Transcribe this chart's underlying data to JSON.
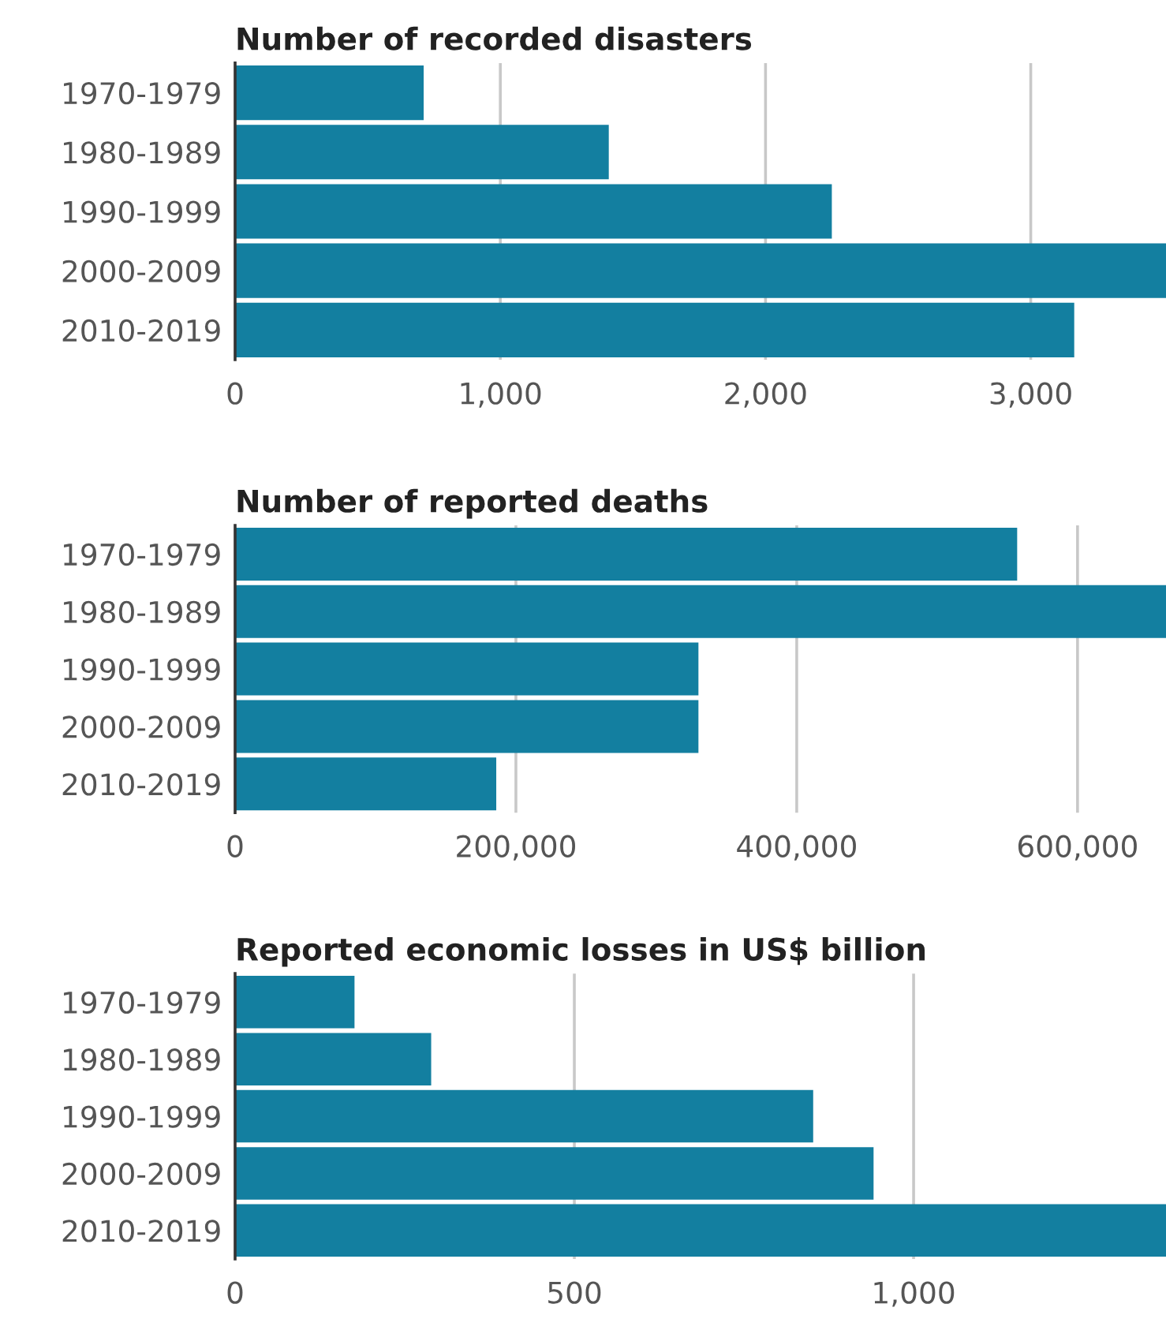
{
  "chart_data": [
    {
      "type": "bar",
      "orientation": "horizontal",
      "title": "Number of recorded disasters",
      "categories": [
        "1970-1979",
        "1980-1989",
        "1990-1999",
        "2000-2009",
        "2010-2019"
      ],
      "values": [
        711,
        1409,
        2250,
        3510,
        3164
      ],
      "color": "#137fa0",
      "xlim": [
        0,
        3510
      ],
      "xticks": [
        {
          "value": 0,
          "label": "0"
        },
        {
          "value": 1000,
          "label": "1,000"
        },
        {
          "value": 2000,
          "label": "2,000"
        },
        {
          "value": 3000,
          "label": "3,000"
        }
      ],
      "grid": "x",
      "legend": false
    },
    {
      "type": "bar",
      "orientation": "horizontal",
      "title": "Number of reported deaths",
      "categories": [
        "1970-1979",
        "1980-1989",
        "1990-1999",
        "2000-2009",
        "2010-2019"
      ],
      "values": [
        557000,
        663000,
        330000,
        330000,
        186000
      ],
      "color": "#137fa0",
      "xlim": [
        0,
        663000
      ],
      "xticks": [
        {
          "value": 0,
          "label": "0"
        },
        {
          "value": 200000,
          "label": "200,000"
        },
        {
          "value": 400000,
          "label": "400,000"
        },
        {
          "value": 600000,
          "label": "600,000"
        }
      ],
      "grid": "x",
      "legend": false
    },
    {
      "type": "bar",
      "orientation": "horizontal",
      "title": "Reported economic losses in US$ billion",
      "categories": [
        "1970-1979",
        "1980-1989",
        "1990-1999",
        "2000-2009",
        "2010-2019"
      ],
      "values": [
        176,
        289,
        852,
        941,
        1372
      ],
      "color": "#137fa0",
      "xlim": [
        0,
        1372
      ],
      "xticks": [
        0,
        500,
        {
          "value": 1000,
          "label": "1,000"
        }
      ],
      "grid": "x",
      "legend": false
    }
  ]
}
